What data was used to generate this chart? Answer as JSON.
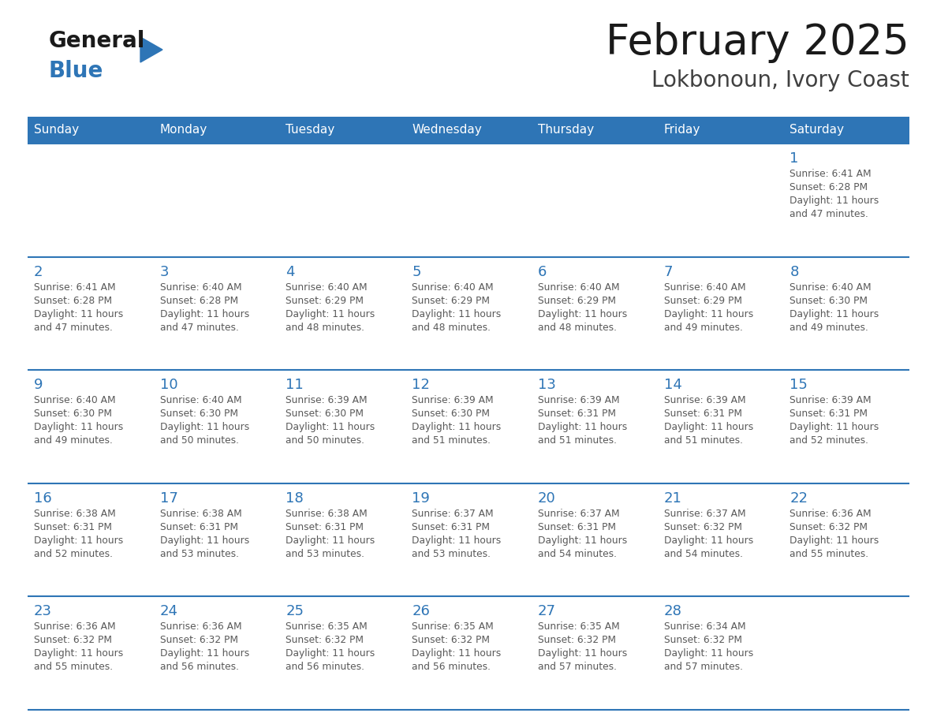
{
  "title": "February 2025",
  "subtitle": "Lokbonoun, Ivory Coast",
  "header_color": "#2e75b6",
  "header_text_color": "#ffffff",
  "day_names": [
    "Sunday",
    "Monday",
    "Tuesday",
    "Wednesday",
    "Thursday",
    "Friday",
    "Saturday"
  ],
  "grid_line_color": "#2e75b6",
  "cell_bg_color": "#ffffff",
  "day_number_color": "#2e75b6",
  "info_text_color": "#595959",
  "bg_color": "#ffffff",
  "logo_general_color": "#1a1a1a",
  "logo_blue_color": "#2e75b6",
  "calendar_data": [
    [
      null,
      null,
      null,
      null,
      null,
      null,
      {
        "day": 1,
        "sunrise": "6:41 AM",
        "sunset": "6:28 PM",
        "daylight": "11 hours\nand 47 minutes."
      }
    ],
    [
      {
        "day": 2,
        "sunrise": "6:41 AM",
        "sunset": "6:28 PM",
        "daylight": "11 hours\nand 47 minutes."
      },
      {
        "day": 3,
        "sunrise": "6:40 AM",
        "sunset": "6:28 PM",
        "daylight": "11 hours\nand 47 minutes."
      },
      {
        "day": 4,
        "sunrise": "6:40 AM",
        "sunset": "6:29 PM",
        "daylight": "11 hours\nand 48 minutes."
      },
      {
        "day": 5,
        "sunrise": "6:40 AM",
        "sunset": "6:29 PM",
        "daylight": "11 hours\nand 48 minutes."
      },
      {
        "day": 6,
        "sunrise": "6:40 AM",
        "sunset": "6:29 PM",
        "daylight": "11 hours\nand 48 minutes."
      },
      {
        "day": 7,
        "sunrise": "6:40 AM",
        "sunset": "6:29 PM",
        "daylight": "11 hours\nand 49 minutes."
      },
      {
        "day": 8,
        "sunrise": "6:40 AM",
        "sunset": "6:30 PM",
        "daylight": "11 hours\nand 49 minutes."
      }
    ],
    [
      {
        "day": 9,
        "sunrise": "6:40 AM",
        "sunset": "6:30 PM",
        "daylight": "11 hours\nand 49 minutes."
      },
      {
        "day": 10,
        "sunrise": "6:40 AM",
        "sunset": "6:30 PM",
        "daylight": "11 hours\nand 50 minutes."
      },
      {
        "day": 11,
        "sunrise": "6:39 AM",
        "sunset": "6:30 PM",
        "daylight": "11 hours\nand 50 minutes."
      },
      {
        "day": 12,
        "sunrise": "6:39 AM",
        "sunset": "6:30 PM",
        "daylight": "11 hours\nand 51 minutes."
      },
      {
        "day": 13,
        "sunrise": "6:39 AM",
        "sunset": "6:31 PM",
        "daylight": "11 hours\nand 51 minutes."
      },
      {
        "day": 14,
        "sunrise": "6:39 AM",
        "sunset": "6:31 PM",
        "daylight": "11 hours\nand 51 minutes."
      },
      {
        "day": 15,
        "sunrise": "6:39 AM",
        "sunset": "6:31 PM",
        "daylight": "11 hours\nand 52 minutes."
      }
    ],
    [
      {
        "day": 16,
        "sunrise": "6:38 AM",
        "sunset": "6:31 PM",
        "daylight": "11 hours\nand 52 minutes."
      },
      {
        "day": 17,
        "sunrise": "6:38 AM",
        "sunset": "6:31 PM",
        "daylight": "11 hours\nand 53 minutes."
      },
      {
        "day": 18,
        "sunrise": "6:38 AM",
        "sunset": "6:31 PM",
        "daylight": "11 hours\nand 53 minutes."
      },
      {
        "day": 19,
        "sunrise": "6:37 AM",
        "sunset": "6:31 PM",
        "daylight": "11 hours\nand 53 minutes."
      },
      {
        "day": 20,
        "sunrise": "6:37 AM",
        "sunset": "6:31 PM",
        "daylight": "11 hours\nand 54 minutes."
      },
      {
        "day": 21,
        "sunrise": "6:37 AM",
        "sunset": "6:32 PM",
        "daylight": "11 hours\nand 54 minutes."
      },
      {
        "day": 22,
        "sunrise": "6:36 AM",
        "sunset": "6:32 PM",
        "daylight": "11 hours\nand 55 minutes."
      }
    ],
    [
      {
        "day": 23,
        "sunrise": "6:36 AM",
        "sunset": "6:32 PM",
        "daylight": "11 hours\nand 55 minutes."
      },
      {
        "day": 24,
        "sunrise": "6:36 AM",
        "sunset": "6:32 PM",
        "daylight": "11 hours\nand 56 minutes."
      },
      {
        "day": 25,
        "sunrise": "6:35 AM",
        "sunset": "6:32 PM",
        "daylight": "11 hours\nand 56 minutes."
      },
      {
        "day": 26,
        "sunrise": "6:35 AM",
        "sunset": "6:32 PM",
        "daylight": "11 hours\nand 56 minutes."
      },
      {
        "day": 27,
        "sunrise": "6:35 AM",
        "sunset": "6:32 PM",
        "daylight": "11 hours\nand 57 minutes."
      },
      {
        "day": 28,
        "sunrise": "6:34 AM",
        "sunset": "6:32 PM",
        "daylight": "11 hours\nand 57 minutes."
      },
      null
    ]
  ],
  "figsize": [
    11.88,
    9.18
  ],
  "dpi": 100
}
